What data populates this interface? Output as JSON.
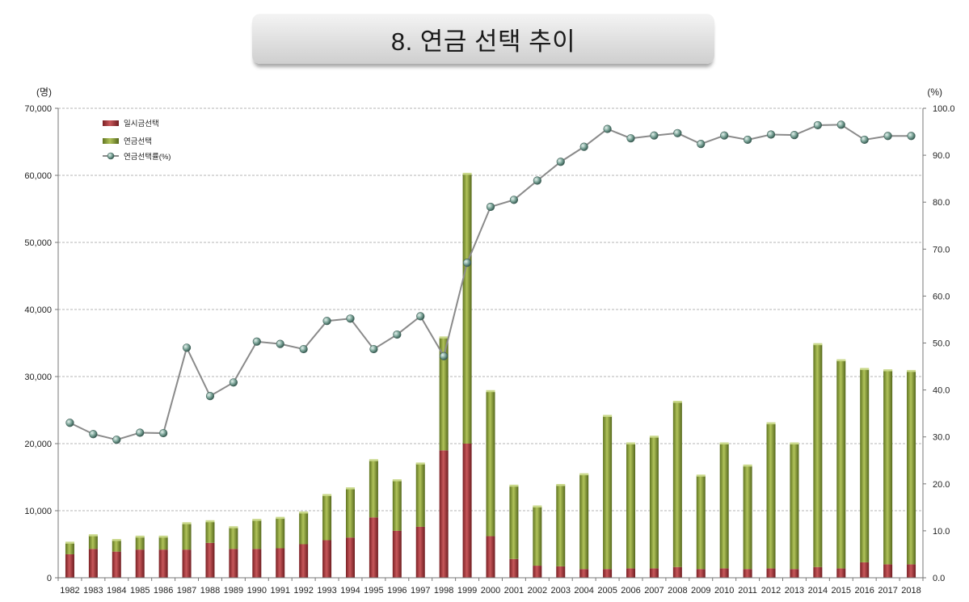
{
  "title": "8. 연금 선택 추이",
  "chart_data": {
    "type": "bar",
    "stacked": true,
    "categories": [
      "1982",
      "1983",
      "1984",
      "1985",
      "1986",
      "1987",
      "1988",
      "1989",
      "1990",
      "1991",
      "1992",
      "1993",
      "1994",
      "1995",
      "1996",
      "1997",
      "1998",
      "1999",
      "2000",
      "2001",
      "2002",
      "2003",
      "2004",
      "2005",
      "2006",
      "2007",
      "2008",
      "2009",
      "2010",
      "2011",
      "2012",
      "2013",
      "2014",
      "2015",
      "2016",
      "2017",
      "2018"
    ],
    "series": [
      {
        "name": "일시금선택",
        "axis": "left",
        "color": "#a8383c",
        "values": [
          3500,
          4300,
          3900,
          4200,
          4200,
          4200,
          5200,
          4300,
          4300,
          4400,
          5000,
          5600,
          6000,
          9000,
          7000,
          7600,
          19000,
          20000,
          6200,
          2800,
          1800,
          1700,
          1300,
          1300,
          1400,
          1400,
          1600,
          1300,
          1400,
          1300,
          1400,
          1300,
          1600,
          1400,
          2300,
          2000,
          2000
        ]
      },
      {
        "name": "연금선택",
        "axis": "left",
        "color": "#8fa33a",
        "values": [
          1700,
          2000,
          1700,
          1900,
          1900,
          3900,
          3200,
          3200,
          4300,
          4500,
          4700,
          6700,
          7300,
          8500,
          7500,
          9400,
          16800,
          40200,
          21600,
          10900,
          8800,
          12100,
          14100,
          22800,
          18600,
          19600,
          24600,
          13900,
          18600,
          15400,
          21600,
          18700,
          33200,
          31000,
          28800,
          28900,
          28800
        ]
      },
      {
        "name": "연금선택률(%)",
        "axis": "right",
        "type": "line",
        "color": "#7f7f7f",
        "values": [
          33.0,
          30.6,
          29.4,
          30.9,
          30.8,
          49.0,
          38.7,
          41.6,
          50.3,
          49.8,
          48.7,
          54.7,
          55.2,
          48.7,
          51.8,
          55.7,
          47.2,
          67.1,
          79.0,
          80.5,
          84.6,
          88.6,
          91.8,
          95.6,
          93.6,
          94.2,
          94.7,
          92.4,
          94.2,
          93.3,
          94.4,
          94.3,
          96.4,
          96.5,
          93.3,
          94.1,
          94.1
        ]
      }
    ],
    "y_left": {
      "unit": "(명)",
      "ylim": [
        0,
        70000
      ],
      "ticks": [
        "0",
        "10,000",
        "20,000",
        "30,000",
        "40,000",
        "50,000",
        "60,000",
        "70,000"
      ]
    },
    "y_right": {
      "unit": "(%)",
      "ylim": [
        0,
        100
      ],
      "ticks": [
        "0.0",
        "10.0",
        "20.0",
        "30.0",
        "40.0",
        "50.0",
        "60.0",
        "70.0",
        "80.0",
        "90.0",
        "100.0"
      ]
    },
    "grid": true,
    "legend": "top-left"
  }
}
